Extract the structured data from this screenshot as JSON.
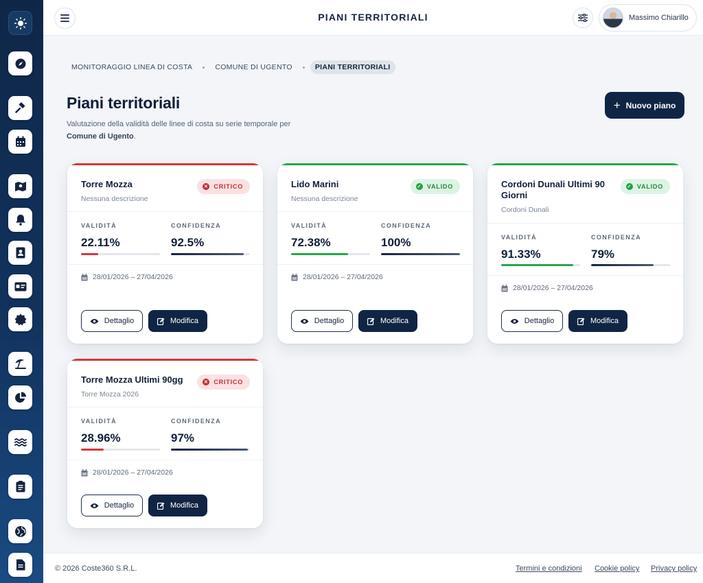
{
  "header": {
    "title": "PIANI TERRITORIALI",
    "user_name": "Massimo Chiarillo"
  },
  "breadcrumb": [
    "MONITORAGGIO LINEA DI COSTA",
    "COMUNE DI UGENTO",
    "PIANI TERRITORIALI"
  ],
  "page": {
    "title": "Piani territoriali",
    "description_prefix": "Valutazione della validità delle linee di costa su serie temporale per",
    "description_location": "Comune di Ugento",
    "description_suffix": ".",
    "new_button": "Nuovo piano"
  },
  "labels": {
    "validity": "VALIDITÀ",
    "confidence": "CONFIDENZA",
    "detail_button": "Dettaglio",
    "edit_button": "Modifica"
  },
  "plans": [
    {
      "name": "Torre Mozza",
      "description": "Nessuna descrizione",
      "status": "CRITICO",
      "status_type": "critical",
      "validity": "22.11%",
      "validity_value": 22.11,
      "confidence": "92.5%",
      "confidence_value": 92.5,
      "period": "28/01/2026 – 27/04/2026"
    },
    {
      "name": "Lido Marini",
      "description": "Nessuna descrizione",
      "status": "VALIDO",
      "status_type": "valid",
      "validity": "72.38%",
      "validity_value": 72.38,
      "confidence": "100%",
      "confidence_value": 100,
      "period": "28/01/2026 – 27/04/2026"
    },
    {
      "name": "Cordoni Dunali Ultimi 90 Giorni",
      "description": "Cordoni Dunali",
      "status": "VALIDO",
      "status_type": "valid",
      "validity": "91.33%",
      "validity_value": 91.33,
      "confidence": "79%",
      "confidence_value": 79,
      "period": "28/01/2026 – 27/04/2026"
    },
    {
      "name": "Torre Mozza Ultimi 90gg",
      "description": "Torre Mozza 2026",
      "status": "CRITICO",
      "status_type": "critical",
      "validity": "28.96%",
      "validity_value": 28.96,
      "confidence": "97%",
      "confidence_value": 97,
      "period": "28/01/2026 – 27/04/2026"
    }
  ],
  "footer": {
    "copyright": "© 2026 Coste360 S.R.L.",
    "links": [
      "Termini e condizioni",
      "Cookie policy",
      "Privacy policy"
    ]
  },
  "sidebar_icons": [
    "logo-icon",
    "compass-icon",
    "gavel-icon",
    "calendar-icon",
    "map-icon",
    "bell-icon",
    "badge-icon",
    "id-card-icon",
    "gear-badge-icon",
    "beach-umbrella-icon",
    "pie-chart-icon",
    "waves-icon",
    "clipboard-icon",
    "globe-icon",
    "document-icon"
  ],
  "colors": {
    "navy": "#102544",
    "critical": "#d7373b",
    "valid": "#27a84a"
  }
}
